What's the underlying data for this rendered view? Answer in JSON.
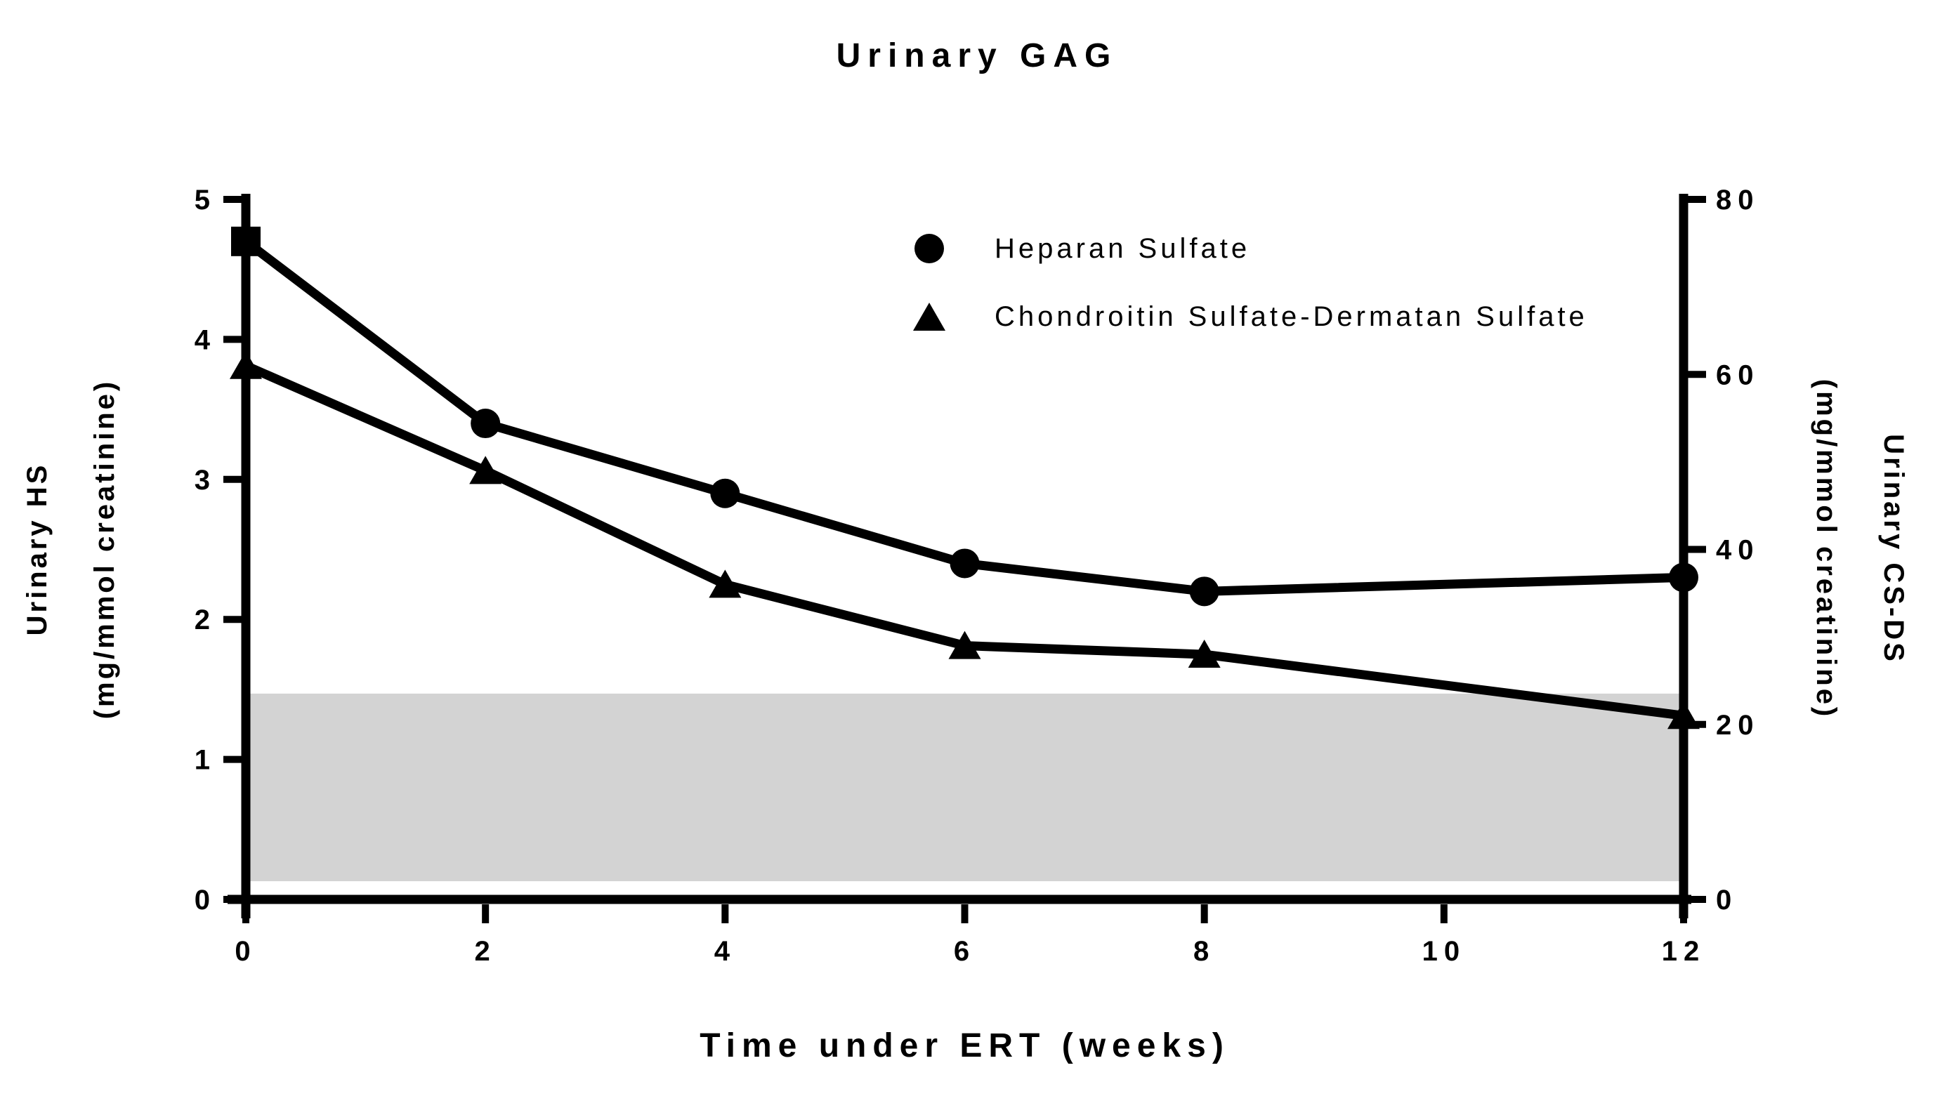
{
  "chart_data": {
    "type": "line",
    "title": "Urinary GAG",
    "xlabel": "Time under ERT (weeks)",
    "ylabel_left": [
      "Urinary HS",
      "(mg/mmol creatinine)"
    ],
    "ylabel_right": [
      "Urinary CS-DS",
      "(mg/mmol creatinine)"
    ],
    "x": [
      0,
      2,
      4,
      6,
      8,
      12
    ],
    "x_ticks": [
      0,
      2,
      4,
      6,
      8,
      10,
      12
    ],
    "xlim": [
      0,
      12
    ],
    "ylim_left": [
      0,
      5
    ],
    "y_ticks_left": [
      0,
      1,
      2,
      3,
      4,
      5
    ],
    "ylim_right": [
      0,
      80
    ],
    "y_ticks_right": [
      0,
      20,
      40,
      60,
      80
    ],
    "grid": false,
    "legend_position": "upper-center",
    "series": [
      {
        "name": "Heparan Sulfate",
        "axis": "left",
        "marker": "circle",
        "first_point_marker": "square",
        "color": "#000000",
        "values": [
          4.7,
          3.4,
          2.9,
          2.4,
          2.2,
          2.3
        ]
      },
      {
        "name": "Chondroitin Sulfate-Dermatan Sulfate",
        "axis": "right",
        "marker": "triangle",
        "color": "#000000",
        "values": [
          61,
          49,
          36,
          29,
          28,
          21
        ]
      }
    ],
    "normal_range_band": {
      "y_left_from": 0.13,
      "y_left_to": 1.47,
      "y_right_from": 2,
      "y_right_to": 23.5,
      "color": "#d3d3d3"
    }
  },
  "legend": [
    {
      "marker": "circle",
      "label": "Heparan Sulfate"
    },
    {
      "marker": "triangle",
      "label": "Chondroitin Sulfate-Dermatan Sulfate"
    }
  ],
  "colors": {
    "foreground": "#000000",
    "band": "#d3d3d3",
    "background": "#ffffff"
  }
}
